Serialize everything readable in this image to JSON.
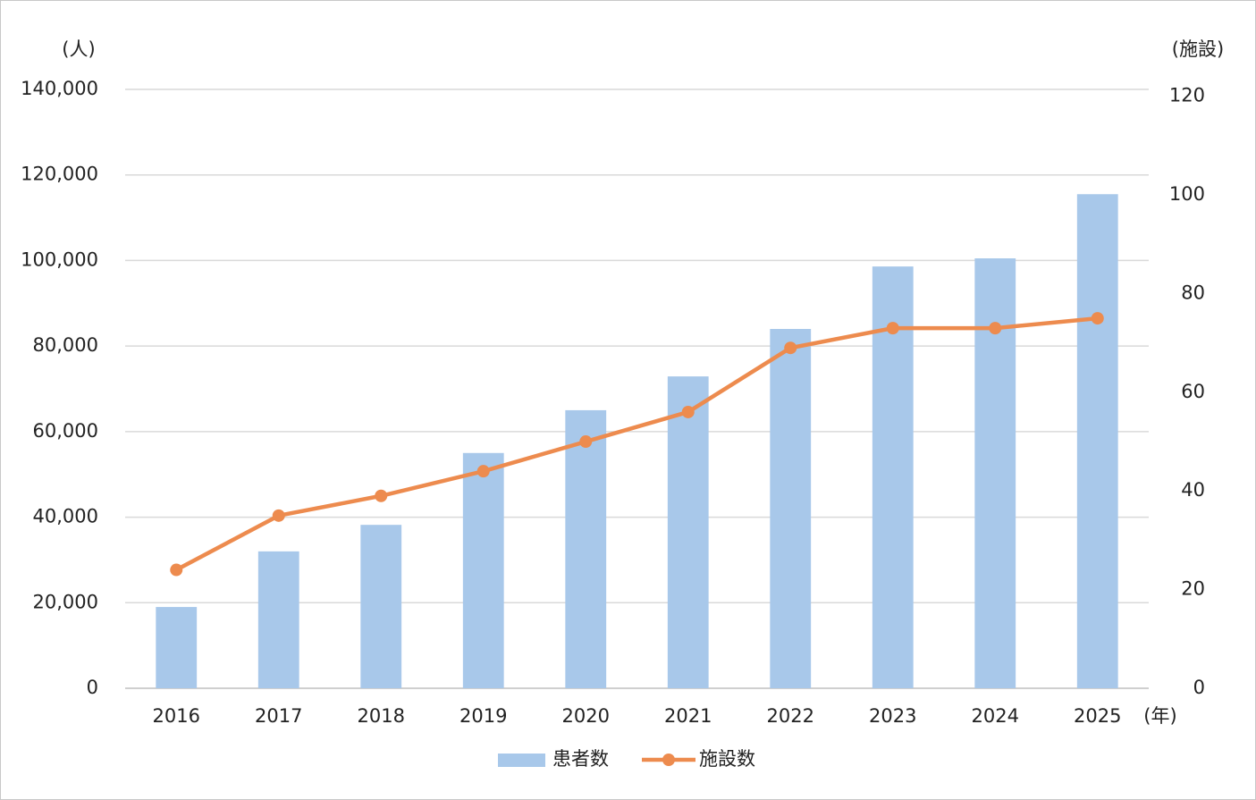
{
  "chart_data": {
    "type": "bar_line",
    "y_axis_label": "(人)",
    "y2_axis_label": "(施設)",
    "x_axis_label": "(年)",
    "categories": [
      "2016",
      "2017",
      "2018",
      "2019",
      "2020",
      "2021",
      "2022",
      "2023",
      "2024",
      "2025"
    ],
    "series": [
      {
        "name": "患者数",
        "type": "bar",
        "color": "#a8c8ea",
        "values": [
          19000,
          32000,
          38200,
          55000,
          65000,
          72900,
          84000,
          98600,
          100500,
          115500
        ]
      },
      {
        "name": "施設数",
        "type": "line",
        "axis": "y2",
        "color": "#ed8b4e",
        "values": [
          24,
          35,
          39,
          44,
          50,
          56,
          69,
          73,
          73,
          75
        ]
      }
    ],
    "ylim": [
      0,
      140000
    ],
    "yticks": [
      0,
      {
        "value": 20000,
        "label": "20,000"
      },
      {
        "value": 40000,
        "label": "40,000"
      },
      {
        "value": 60000,
        "label": "60,000"
      },
      {
        "value": 80000,
        "label": "80,000"
      },
      {
        "value": 100000,
        "label": "100,000"
      },
      {
        "value": 120000,
        "label": "120,000"
      },
      {
        "value": 140000,
        "label": "140,000"
      }
    ],
    "y2lim": [
      0,
      121.4
    ],
    "y2ticks": [
      0,
      20,
      40,
      60,
      80,
      100,
      120
    ],
    "grid": true,
    "legend": "bottom"
  }
}
